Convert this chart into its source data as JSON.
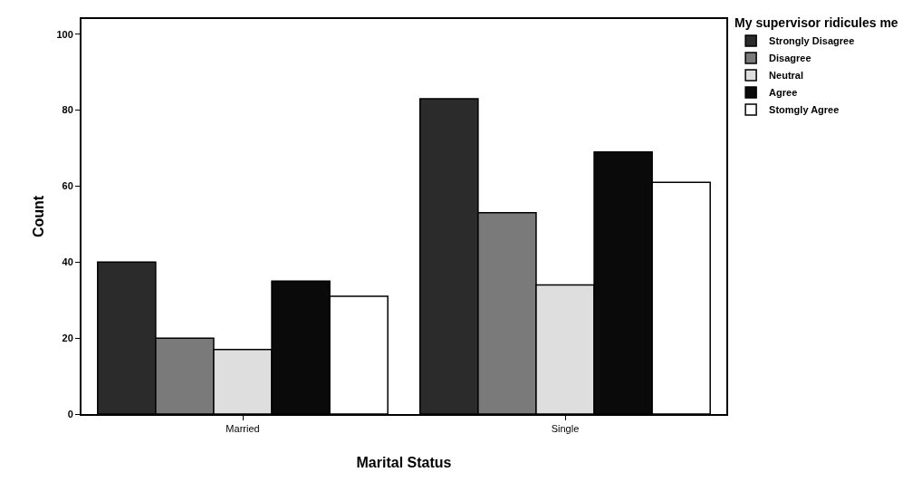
{
  "chart_data": {
    "type": "bar",
    "xlabel": "Marital Status",
    "ylabel": "Count",
    "legend_title": "My supervisor ridicules me",
    "categories": [
      "Married",
      "Single"
    ],
    "series": [
      {
        "name": "Strongly Disagree",
        "color": "#2b2b2b",
        "values": [
          40,
          83
        ]
      },
      {
        "name": "Disagree",
        "color": "#7a7a7a",
        "values": [
          20,
          53
        ]
      },
      {
        "name": "Neutral",
        "color": "#dedede",
        "values": [
          17,
          34
        ]
      },
      {
        "name": "Agree",
        "color": "#0a0a0a",
        "values": [
          35,
          69
        ]
      },
      {
        "name": "Stomgly Agree",
        "color": "#ffffff",
        "values": [
          31,
          61
        ]
      }
    ],
    "ylim": [
      0,
      104
    ],
    "yticks": [
      0,
      20,
      40,
      60,
      80,
      100
    ],
    "grid": false,
    "legend": "top right"
  }
}
